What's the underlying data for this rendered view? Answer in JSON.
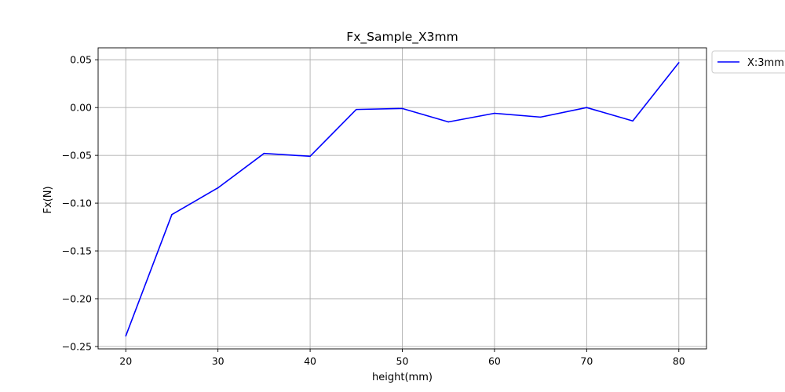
{
  "chart_data": {
    "type": "line",
    "title": "Fx_Sample_X3mm",
    "xlabel": "height(mm)",
    "ylabel": "Fx(N)",
    "xlim": [
      17,
      83
    ],
    "ylim": [
      -0.2525,
      0.0625
    ],
    "xticks": [
      20,
      30,
      40,
      50,
      60,
      70,
      80
    ],
    "yticks": [
      0.05,
      0.0,
      -0.05,
      -0.1,
      -0.15,
      -0.2,
      -0.25
    ],
    "ytick_labels": [
      "0.05",
      "0.00",
      "−0.05",
      "−0.10",
      "−0.15",
      "−0.20",
      "−0.25"
    ],
    "grid": true,
    "legend_position": "outside-top-right",
    "series": [
      {
        "name": "X:3mm",
        "color": "#0000ff",
        "x": [
          20,
          25,
          30,
          35,
          40,
          45,
          50,
          55,
          60,
          65,
          70,
          75,
          80
        ],
        "y": [
          -0.239,
          -0.112,
          -0.084,
          -0.048,
          -0.051,
          -0.002,
          -0.001,
          -0.015,
          -0.006,
          -0.01,
          0.0,
          -0.014,
          0.047
        ]
      }
    ]
  },
  "colors": {
    "grid": "#b0b0b0",
    "axis": "#000000",
    "legend_border": "#cccccc"
  }
}
